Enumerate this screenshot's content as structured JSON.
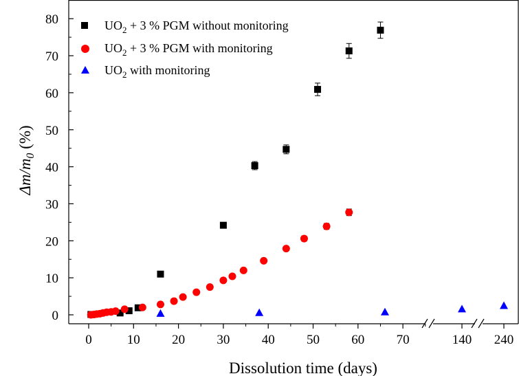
{
  "chart_data": {
    "type": "scatter",
    "xlabel": "Dissolution time (days)",
    "ylabel_prefix": "Δm/m",
    "ylabel_sub": "0",
    "ylabel_suffix": " (%)",
    "xticks": [
      "0",
      "10",
      "20",
      "30",
      "40",
      "50",
      "60",
      "70",
      "140",
      "240"
    ],
    "yticks": [
      "0",
      "10",
      "20",
      "30",
      "40",
      "50",
      "60",
      "70",
      "80"
    ],
    "ylim": [
      -2,
      80
    ],
    "x_break_after": 70,
    "grid": false,
    "legend_position": "top-left",
    "series": [
      {
        "name_pre": "UO",
        "name_sub": "2",
        "name_post": " + 3 % PGM without monitoring",
        "color": "#000000",
        "marker": "square",
        "points": [
          {
            "x": 0.5,
            "y": 0.1
          },
          {
            "x": 7,
            "y": 0.5
          },
          {
            "x": 9,
            "y": 1.1
          },
          {
            "x": 11,
            "y": 1.9
          },
          {
            "x": 16,
            "y": 11.0,
            "err": 0.4
          },
          {
            "x": 30,
            "y": 24.2,
            "err": 0.6
          },
          {
            "x": 37,
            "y": 40.3,
            "err": 1.1
          },
          {
            "x": 44,
            "y": 44.7,
            "err": 1.2
          },
          {
            "x": 51,
            "y": 60.9,
            "err": 1.7
          },
          {
            "x": 58,
            "y": 71.3,
            "err": 2.0
          },
          {
            "x": 65,
            "y": 76.9,
            "err": 2.2
          }
        ]
      },
      {
        "name_pre": "UO",
        "name_sub": "2",
        "name_post": " + 3 % PGM with monitoring",
        "color": "#ff0000",
        "marker": "circle",
        "points": [
          {
            "x": 0.5,
            "y": 0
          },
          {
            "x": 1.2,
            "y": 0.1
          },
          {
            "x": 1.8,
            "y": 0.2
          },
          {
            "x": 2.5,
            "y": 0.3
          },
          {
            "x": 3.2,
            "y": 0.5
          },
          {
            "x": 4,
            "y": 0.7
          },
          {
            "x": 5,
            "y": 0.8
          },
          {
            "x": 6,
            "y": 1.0
          },
          {
            "x": 8,
            "y": 1.5
          },
          {
            "x": 12,
            "y": 2.0
          },
          {
            "x": 16,
            "y": 2.8
          },
          {
            "x": 19,
            "y": 3.7
          },
          {
            "x": 21,
            "y": 4.8
          },
          {
            "x": 24,
            "y": 6.1
          },
          {
            "x": 27,
            "y": 7.5
          },
          {
            "x": 30,
            "y": 9.3
          },
          {
            "x": 32,
            "y": 10.4
          },
          {
            "x": 34.5,
            "y": 12.0
          },
          {
            "x": 39,
            "y": 14.6
          },
          {
            "x": 44,
            "y": 17.9,
            "err": 0.6
          },
          {
            "x": 48,
            "y": 20.6,
            "err": 0.7
          },
          {
            "x": 53,
            "y": 23.9,
            "err": 0.8
          },
          {
            "x": 58,
            "y": 27.7,
            "err": 0.9
          }
        ]
      },
      {
        "name_pre": "UO",
        "name_sub": "2",
        "name_post": " with monitoring",
        "color": "#0000ff",
        "marker": "triangle",
        "points": [
          {
            "x": 16,
            "y": 0.4
          },
          {
            "x": 38,
            "y": 0.6
          },
          {
            "x": 66,
            "y": 0.8
          },
          {
            "x": 140,
            "y": 1.6
          },
          {
            "x": 240,
            "y": 2.5
          }
        ]
      }
    ]
  }
}
